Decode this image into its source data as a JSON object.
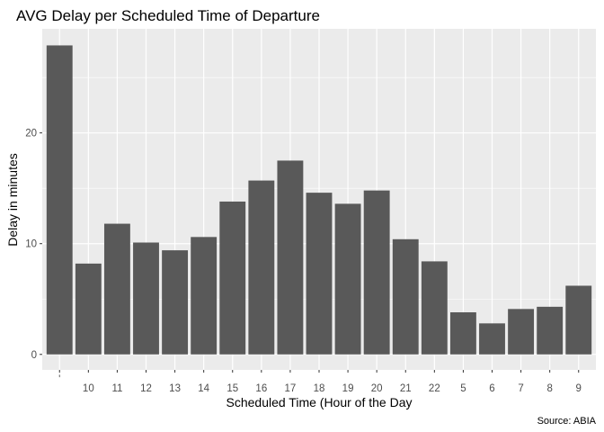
{
  "chart_data": {
    "type": "bar",
    "title": "AVG Delay per Scheduled Time of Departure",
    "xlabel": "Scheduled Time (Hour of the Day",
    "ylabel": "Delay in minutes",
    "caption": "Source: ABIA",
    "categories": [
      "'",
      "10",
      "11",
      "12",
      "13",
      "14",
      "15",
      "16",
      "17",
      "18",
      "19",
      "20",
      "21",
      "22",
      "5",
      "6",
      "7",
      "8",
      "9"
    ],
    "values": [
      27.9,
      8.2,
      11.8,
      10.1,
      9.4,
      10.6,
      13.8,
      15.7,
      17.5,
      14.6,
      13.6,
      14.8,
      10.4,
      8.4,
      3.8,
      2.8,
      4.1,
      4.3,
      6.2
    ],
    "ylim": [
      -1.4,
      29.4
    ],
    "yticks": [
      0,
      10,
      20
    ],
    "bar_color": "#595959",
    "panel_color": "#EBEBEB",
    "grid": true,
    "legend": "none"
  }
}
